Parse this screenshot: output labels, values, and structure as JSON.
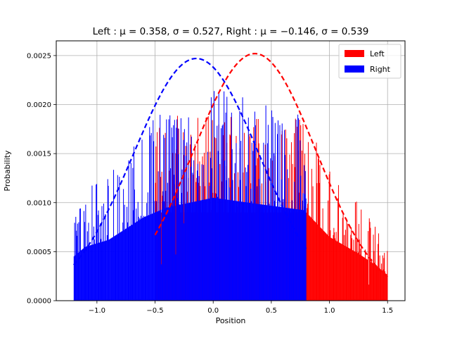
{
  "chart_data": {
    "type": "bar",
    "title": "Left :  μ = 0.358,  σ = 0.527, Right :  μ = −0.146,  σ = 0.539",
    "xlabel": "Position",
    "ylabel": "Probability",
    "xlim": [
      -1.35,
      1.65
    ],
    "ylim": [
      0,
      0.00265
    ],
    "x_ticks": [
      -1.0,
      -0.5,
      0.0,
      0.5,
      1.0,
      1.5
    ],
    "x_tick_labels": [
      "−1.0",
      "−0.5",
      "0.0",
      "0.5",
      "1.0",
      "1.5"
    ],
    "y_ticks": [
      0,
      0.0005,
      0.001,
      0.0015,
      0.002,
      0.0025
    ],
    "y_tick_labels": [
      "0.0000",
      "0.0005",
      "0.0010",
      "0.0015",
      "0.0020",
      "0.0025"
    ],
    "grid": true,
    "legend_position": "top-right",
    "series": [
      {
        "name": "Left",
        "color": "#ff0000",
        "kind": "histogram",
        "range": [
          -0.5,
          1.5
        ],
        "bin_width": 0.005,
        "base_level": [
          [
            -0.5,
            0.0009
          ],
          [
            0.8,
            0.0009
          ],
          [
            1.0,
            0.00065
          ],
          [
            1.25,
            0.00048
          ],
          [
            1.4,
            0.00036
          ],
          [
            1.5,
            0.00026
          ]
        ],
        "fit": {
          "mu": 0.358,
          "sigma": 0.527,
          "peak": 0.00252,
          "range": [
            -0.5,
            1.5
          ],
          "color": "#ff0000"
        }
      },
      {
        "name": "Right",
        "color": "#0000ff",
        "kind": "histogram",
        "range": [
          -1.2,
          0.8
        ],
        "bin_width": 0.005,
        "base_level": [
          [
            -1.2,
            0.00045
          ],
          [
            -1.1,
            0.00055
          ],
          [
            -0.9,
            0.00062
          ],
          [
            -0.6,
            0.00085
          ],
          [
            -0.4,
            0.00095
          ],
          [
            0.0,
            0.00105
          ],
          [
            0.3,
            0.001
          ],
          [
            0.8,
            0.00092
          ]
        ],
        "fit": {
          "mu": -0.146,
          "sigma": 0.539,
          "peak": 0.00247,
          "range": [
            -1.2,
            0.8
          ],
          "color": "#0000ff"
        }
      }
    ]
  }
}
